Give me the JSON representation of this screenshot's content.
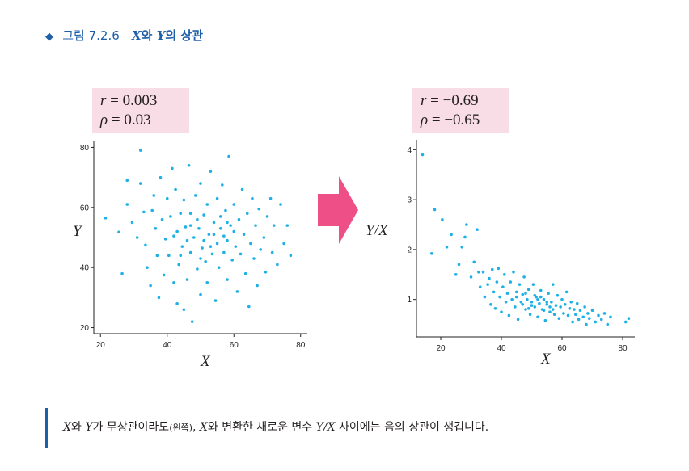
{
  "header": {
    "figure_number": "그림 7.2.6",
    "caption_x": "X",
    "caption_mid": "와 ",
    "caption_y": "Y",
    "caption_end": "의 상관",
    "marker_color": "#1f5fa8"
  },
  "left_stats": {
    "r_sym": "r",
    "r_text": " = 0.003",
    "rho_sym": "ρ",
    "rho_text": " = 0.03"
  },
  "right_stats": {
    "r_sym": "r",
    "r_text": " = −0.69",
    "rho_sym": "ρ",
    "rho_text": " = −0.65"
  },
  "arrow": {
    "color": "#ee4f86",
    "icon": "right-arrow-icon"
  },
  "footnote": {
    "x1": "X",
    "t1": "와 ",
    "y1": "Y",
    "t2": "가 무상관이라도",
    "paren": "(왼쪽)",
    "t3": ", ",
    "x2": "X",
    "t4": "와 변환한 새로운 변수 ",
    "yx": "Y/X",
    "t5": " 사이에는 음의 상관이 생깁니다."
  },
  "chart_data": [
    {
      "type": "scatter",
      "xlabel": "X",
      "ylabel": "Y",
      "xticks": [
        "20",
        "40",
        "60",
        "80"
      ],
      "yticks": [
        "20",
        "40",
        "60",
        "80"
      ],
      "xlim": [
        18,
        82
      ],
      "ylim": [
        18,
        82
      ],
      "color": "#1fb1e6",
      "points": [
        [
          21.5,
          56.5
        ],
        [
          25.5,
          51.8
        ],
        [
          26.5,
          38
        ],
        [
          28,
          69
        ],
        [
          28,
          61
        ],
        [
          29.5,
          55
        ],
        [
          31,
          50
        ],
        [
          32,
          68
        ],
        [
          32,
          79
        ],
        [
          33,
          58.5
        ],
        [
          33.5,
          47.5
        ],
        [
          34,
          40
        ],
        [
          35,
          34
        ],
        [
          35.5,
          59
        ],
        [
          36,
          64
        ],
        [
          36.5,
          53
        ],
        [
          37,
          44
        ],
        [
          37.5,
          30
        ],
        [
          38,
          70
        ],
        [
          38.5,
          56
        ],
        [
          39,
          37.5
        ],
        [
          39.5,
          49.5
        ],
        [
          40,
          63
        ],
        [
          40.5,
          44
        ],
        [
          41,
          57
        ],
        [
          41.5,
          73
        ],
        [
          42,
          35
        ],
        [
          42,
          50.5
        ],
        [
          42.5,
          66
        ],
        [
          43,
          28
        ],
        [
          43.5,
          41
        ],
        [
          44,
          58
        ],
        [
          44.5,
          47
        ],
        [
          45,
          62.5
        ],
        [
          45,
          26
        ],
        [
          45.5,
          53.5
        ],
        [
          46,
          36
        ],
        [
          46.5,
          74
        ],
        [
          47,
          45
        ],
        [
          47,
          58
        ],
        [
          47.5,
          22
        ],
        [
          48,
          50
        ],
        [
          48.5,
          64
        ],
        [
          49,
          39.5
        ],
        [
          49.5,
          53
        ],
        [
          50,
          31
        ],
        [
          50,
          68
        ],
        [
          50.5,
          46.5
        ],
        [
          51,
          57.5
        ],
        [
          51.5,
          42
        ],
        [
          52,
          61
        ],
        [
          52,
          35
        ],
        [
          52.5,
          51
        ],
        [
          53,
          72
        ],
        [
          53.5,
          44.5
        ],
        [
          54,
          55
        ],
        [
          54.5,
          29
        ],
        [
          55,
          48
        ],
        [
          55,
          63
        ],
        [
          55.5,
          40
        ],
        [
          56,
          53
        ],
        [
          56.5,
          67.5
        ],
        [
          57,
          45
        ],
        [
          57.5,
          59
        ],
        [
          58,
          49
        ],
        [
          58,
          36
        ],
        [
          58.5,
          77
        ],
        [
          59,
          54
        ],
        [
          59.5,
          42.5
        ],
        [
          60,
          61
        ],
        [
          60.5,
          47
        ],
        [
          61,
          32
        ],
        [
          61.5,
          56
        ],
        [
          62,
          44.5
        ],
        [
          62.5,
          66
        ],
        [
          63,
          51
        ],
        [
          63.5,
          38
        ],
        [
          64,
          58
        ],
        [
          64.5,
          27
        ],
        [
          65,
          48
        ],
        [
          65.5,
          63
        ],
        [
          66,
          43
        ],
        [
          66.5,
          54
        ],
        [
          67,
          34
        ],
        [
          67.5,
          59.5
        ],
        [
          68,
          46
        ],
        [
          69,
          50
        ],
        [
          69.5,
          38.5
        ],
        [
          70,
          57
        ],
        [
          71,
          63
        ],
        [
          71.5,
          45
        ],
        [
          72,
          54
        ],
        [
          73,
          41
        ],
        [
          74,
          61
        ],
        [
          75,
          48
        ],
        [
          76,
          54
        ],
        [
          77,
          44
        ],
        [
          43,
          52
        ],
        [
          47,
          54
        ],
        [
          51,
          49
        ],
        [
          54,
          51
        ],
        [
          57,
          50.5
        ],
        [
          49,
          56
        ],
        [
          53,
          47
        ],
        [
          46,
          49
        ],
        [
          58,
          55
        ],
        [
          44,
          44
        ],
        [
          56,
          57
        ],
        [
          50,
          43
        ],
        [
          60,
          52
        ]
      ]
    },
    {
      "type": "scatter",
      "xlabel": "X",
      "ylabel": "Y/X",
      "xticks": [
        "20",
        "40",
        "60",
        "80"
      ],
      "yticks": [
        "1",
        "2",
        "3",
        "4"
      ],
      "xlim": [
        12,
        84
      ],
      "ylim": [
        0.25,
        4.2
      ],
      "color": "#1fb1e6",
      "points": [
        [
          14,
          3.9
        ],
        [
          17,
          1.92
        ],
        [
          18,
          2.8
        ],
        [
          20.5,
          2.6
        ],
        [
          22,
          2.05
        ],
        [
          23.5,
          2.3
        ],
        [
          25,
          1.5
        ],
        [
          26,
          1.7
        ],
        [
          27,
          2.05
        ],
        [
          28,
          2.25
        ],
        [
          28.5,
          2.5
        ],
        [
          30,
          1.45
        ],
        [
          31,
          1.75
        ],
        [
          32,
          2.4
        ],
        [
          32.5,
          1.55
        ],
        [
          33,
          1.25
        ],
        [
          34,
          1.55
        ],
        [
          34.5,
          1.05
        ],
        [
          35.5,
          1.3
        ],
        [
          36,
          1.42
        ],
        [
          36.5,
          0.9
        ],
        [
          37,
          1.6
        ],
        [
          37.5,
          1.15
        ],
        [
          38,
          0.82
        ],
        [
          38.5,
          1.35
        ],
        [
          39,
          1.62
        ],
        [
          39.5,
          1.05
        ],
        [
          40,
          0.75
        ],
        [
          40.5,
          1.25
        ],
        [
          41,
          1.5
        ],
        [
          41.5,
          0.95
        ],
        [
          42,
          1.12
        ],
        [
          42.5,
          0.68
        ],
        [
          43,
          1.35
        ],
        [
          43.5,
          1.0
        ],
        [
          44,
          1.55
        ],
        [
          44.5,
          0.85
        ],
        [
          45,
          1.15
        ],
        [
          45.5,
          0.6
        ],
        [
          46,
          1.3
        ],
        [
          46.5,
          0.95
        ],
        [
          47,
          1.1
        ],
        [
          47.5,
          1.45
        ],
        [
          48,
          0.8
        ],
        [
          48.5,
          1.0
        ],
        [
          49,
          1.2
        ],
        [
          49.5,
          0.7
        ],
        [
          50,
          0.95
        ],
        [
          50.5,
          1.3
        ],
        [
          51,
          0.85
        ],
        [
          51.5,
          1.05
        ],
        [
          52,
          0.65
        ],
        [
          52.5,
          0.92
        ],
        [
          53,
          1.18
        ],
        [
          53.5,
          0.8
        ],
        [
          54,
          1.0
        ],
        [
          54.5,
          0.58
        ],
        [
          55,
          0.9
        ],
        [
          55.5,
          1.12
        ],
        [
          56,
          0.75
        ],
        [
          56.5,
          0.95
        ],
        [
          57,
          1.3
        ],
        [
          57.5,
          0.7
        ],
        [
          58,
          0.88
        ],
        [
          58.5,
          1.08
        ],
        [
          59,
          0.62
        ],
        [
          59.5,
          0.85
        ],
        [
          60,
          1.0
        ],
        [
          60.5,
          0.72
        ],
        [
          61,
          0.9
        ],
        [
          61.5,
          1.15
        ],
        [
          62,
          0.68
        ],
        [
          62.5,
          0.82
        ],
        [
          63,
          0.95
        ],
        [
          63.5,
          0.55
        ],
        [
          64,
          0.8
        ],
        [
          64.5,
          0.7
        ],
        [
          65,
          0.92
        ],
        [
          65.5,
          0.6
        ],
        [
          66,
          0.78
        ],
        [
          67,
          0.65
        ],
        [
          67.5,
          0.85
        ],
        [
          68,
          0.5
        ],
        [
          68.5,
          0.72
        ],
        [
          69,
          0.62
        ],
        [
          70,
          0.78
        ],
        [
          71,
          0.55
        ],
        [
          72,
          0.68
        ],
        [
          73,
          0.6
        ],
        [
          74,
          0.72
        ],
        [
          75,
          0.5
        ],
        [
          76,
          0.65
        ],
        [
          81,
          0.55
        ],
        [
          82,
          0.62
        ],
        [
          45,
          1.05
        ],
        [
          48,
          1.12
        ],
        [
          50,
          0.88
        ],
        [
          52,
          1.0
        ],
        [
          54,
          0.78
        ],
        [
          56,
          0.85
        ],
        [
          47,
          0.9
        ],
        [
          53,
          1.05
        ],
        [
          55,
          0.95
        ],
        [
          57,
          0.8
        ],
        [
          49,
          0.82
        ],
        [
          51,
          1.08
        ]
      ]
    }
  ]
}
